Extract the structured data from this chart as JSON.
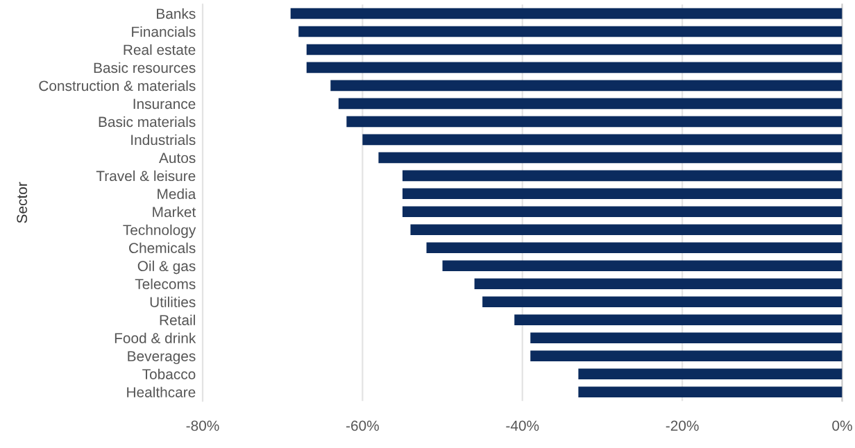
{
  "chart_data": {
    "type": "bar",
    "orientation": "horizontal",
    "ylabel": "Sector",
    "categories": [
      "Banks",
      "Financials",
      "Real estate",
      "Basic resources",
      "Construction & materials",
      "Insurance",
      "Basic materials",
      "Industrials",
      "Autos",
      "Travel & leisure",
      "Media",
      "Market",
      "Technology",
      "Chemicals",
      "Oil & gas",
      "Telecoms",
      "Utilities",
      "Retail",
      "Food & drink",
      "Beverages",
      "Tobacco",
      "Healthcare"
    ],
    "values": [
      -69,
      -68,
      -67,
      -67,
      -64,
      -63,
      -62,
      -60,
      -58,
      -55,
      -55,
      -55,
      -54,
      -52,
      -50,
      -46,
      -45,
      -41,
      -39,
      -39,
      -33,
      -33
    ],
    "color": "#0b2b5e",
    "xlim": [
      -80,
      0
    ],
    "xticks": [
      {
        "value": -80,
        "label": "-80%"
      },
      {
        "value": -60,
        "label": "-60%"
      },
      {
        "value": -40,
        "label": "-40%"
      },
      {
        "value": -20,
        "label": "-20%"
      },
      {
        "value": 0,
        "label": "0%"
      }
    ],
    "grid": "x"
  }
}
